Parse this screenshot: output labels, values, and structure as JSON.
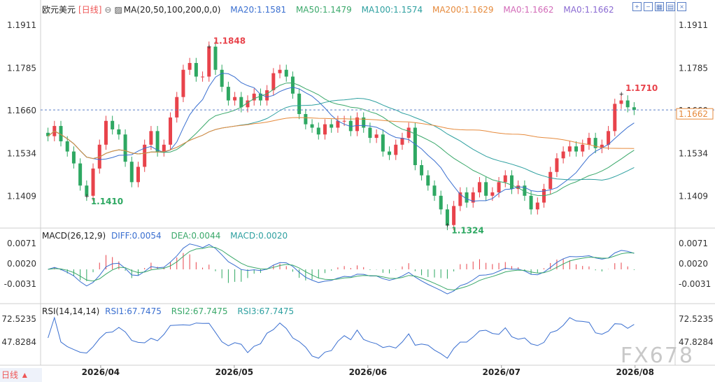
{
  "header": {
    "symbol": "欧元美元",
    "period_tag": "[日线]",
    "ma_title": "MA(20,50,100,200,0,0)",
    "ma_items": [
      {
        "label": "MA20:1.1581",
        "color": "#3a6fd0"
      },
      {
        "label": "MA50:1.1479",
        "color": "#3aa86a"
      },
      {
        "label": "MA100:1.1574",
        "color": "#2ea0a0"
      },
      {
        "label": "MA200:1.1629",
        "color": "#e68a3c"
      },
      {
        "label": "MA0:1.1662",
        "color": "#d26ab8"
      },
      {
        "label": "MA0:1.1662",
        "color": "#8a6ad2"
      }
    ],
    "toolbar_icons": [
      "zoom-in-icon",
      "zoom-out-icon",
      "layout-icon",
      "panel-icon",
      "close-icon"
    ]
  },
  "macd": {
    "title": "MACD(26,12,9)",
    "diff_label": "DIFF:0.0054",
    "dea_label": "DEA:0.0044",
    "macd_label": "MACD:0.0020",
    "ticks": [
      "0.0071",
      "0.0020",
      "-0.0031"
    ]
  },
  "rsi": {
    "title": "RSI(14,14,14)",
    "rsi1_label": "RSI1:67.7475",
    "rsi2_label": "RSI2:67.7475",
    "rsi3_label": "RSI3:67.7475",
    "ticks": [
      "72.5235",
      "47.8284"
    ]
  },
  "footer": {
    "period_button": "日线 ▲",
    "watermark": "FX678"
  },
  "chart_data": {
    "type": "candlestick",
    "price_ticks": [
      "1.1911",
      "1.1785",
      "1.1660",
      "1.1534",
      "1.1409"
    ],
    "price_range": [
      1.1311,
      1.1948
    ],
    "current_price_label": "1.1662",
    "last_price": 1.1662,
    "x_labels": [
      "2026/04",
      "2026/05",
      "2026/06",
      "2026/07",
      "2026/08"
    ],
    "annotations": [
      {
        "text": "1.1848",
        "value": 1.1848,
        "type": "high"
      },
      {
        "text": "1.1410",
        "value": 1.141,
        "type": "low"
      },
      {
        "text": "1.1324",
        "value": 1.1324,
        "type": "low"
      },
      {
        "text": "1.1710",
        "value": 1.171,
        "type": "high"
      }
    ],
    "colors": {
      "up": "#e8434b",
      "down": "#2ea862",
      "text_up": "#e8434b",
      "text_down": "#2ea862"
    },
    "key_closes": [
      1.1585,
      1.1615,
      1.157,
      1.154,
      1.1505,
      1.144,
      1.141,
      1.149,
      1.156,
      1.163,
      1.1605,
      1.159,
      1.151,
      1.145,
      1.1495,
      1.156,
      1.16,
      1.154,
      1.156,
      1.164,
      1.17,
      1.178,
      1.18,
      1.176,
      1.176,
      1.1848,
      1.178,
      1.173,
      1.169,
      1.17,
      1.167,
      1.169,
      1.171,
      1.169,
      1.172,
      1.177,
      1.178,
      1.176,
      1.171,
      1.165,
      1.162,
      1.161,
      1.159,
      1.162,
      1.161,
      1.163,
      1.163,
      1.16,
      1.164,
      1.161,
      1.158,
      1.159,
      1.154,
      1.153,
      1.156,
      1.158,
      1.161,
      1.15,
      1.147,
      1.144,
      1.141,
      1.137,
      1.1324,
      1.138,
      1.142,
      1.139,
      1.142,
      1.145,
      1.141,
      1.142,
      1.145,
      1.147,
      1.143,
      1.144,
      1.141,
      1.137,
      1.139,
      1.143,
      1.148,
      1.152,
      1.154,
      1.1555,
      1.154,
      1.156,
      1.158,
      1.155,
      1.156,
      1.16,
      1.168,
      1.169,
      1.167,
      1.1662
    ],
    "ma_series": [
      {
        "name": "MA20",
        "color": "#3a6fd0",
        "value": 1.1581
      },
      {
        "name": "MA50",
        "color": "#3aa86a",
        "value": 1.1479
      },
      {
        "name": "MA100",
        "color": "#2ea0a0",
        "value": 1.1574
      },
      {
        "name": "MA200",
        "color": "#e68a3c",
        "value": 1.1629
      }
    ]
  }
}
